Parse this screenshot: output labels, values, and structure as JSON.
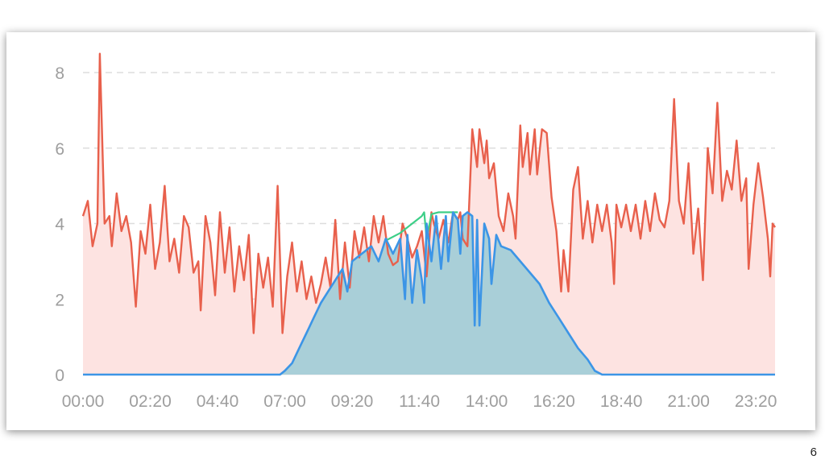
{
  "page_number": "6",
  "colors": {
    "consumption_line": "#e8604c",
    "consumption_fill": "#fde3e1",
    "solar_line": "#3c95e6",
    "solar_fill": "#a9cfd8",
    "estimate_line": "#3dcf88",
    "grid": "#dddddd",
    "tick_text": "#9e9e9e"
  },
  "chart_data": {
    "type": "area",
    "title": "",
    "xlabel": "",
    "ylabel": "",
    "x_tick_labels": [
      "00:00",
      "02:20",
      "04:40",
      "07:00",
      "09:20",
      "11:40",
      "14:00",
      "16:20",
      "18:40",
      "21:00",
      "23:20"
    ],
    "y_ticks": [
      0,
      2,
      4,
      6,
      8
    ],
    "xlim": [
      "00:00",
      "24:00"
    ],
    "ylim": [
      0,
      8.6
    ],
    "grid": "horizontal dashed",
    "legend": "none",
    "series": [
      {
        "id": "consumption",
        "color": "#e8604c",
        "points": [
          [
            "00:00",
            4.2
          ],
          [
            "00:10",
            4.6
          ],
          [
            "00:20",
            3.4
          ],
          [
            "00:30",
            4.0
          ],
          [
            "00:35",
            8.5
          ],
          [
            "00:45",
            4.0
          ],
          [
            "00:55",
            4.2
          ],
          [
            "01:00",
            3.4
          ],
          [
            "01:10",
            4.8
          ],
          [
            "01:20",
            3.8
          ],
          [
            "01:30",
            4.2
          ],
          [
            "01:40",
            3.5
          ],
          [
            "01:50",
            1.8
          ],
          [
            "02:00",
            3.8
          ],
          [
            "02:10",
            3.2
          ],
          [
            "02:20",
            4.5
          ],
          [
            "02:30",
            2.8
          ],
          [
            "02:40",
            3.5
          ],
          [
            "02:50",
            5.0
          ],
          [
            "03:00",
            3.0
          ],
          [
            "03:10",
            3.6
          ],
          [
            "03:20",
            2.7
          ],
          [
            "03:30",
            4.2
          ],
          [
            "03:40",
            3.9
          ],
          [
            "03:50",
            2.7
          ],
          [
            "04:00",
            3.0
          ],
          [
            "04:05",
            1.7
          ],
          [
            "04:15",
            4.2
          ],
          [
            "04:25",
            3.5
          ],
          [
            "04:35",
            2.1
          ],
          [
            "04:45",
            4.3
          ],
          [
            "04:55",
            2.7
          ],
          [
            "05:05",
            3.9
          ],
          [
            "05:15",
            2.2
          ],
          [
            "05:25",
            3.4
          ],
          [
            "05:35",
            2.5
          ],
          [
            "05:45",
            3.7
          ],
          [
            "05:55",
            1.1
          ],
          [
            "06:05",
            3.2
          ],
          [
            "06:15",
            2.3
          ],
          [
            "06:25",
            3.1
          ],
          [
            "06:35",
            1.8
          ],
          [
            "06:45",
            5.0
          ],
          [
            "06:55",
            1.1
          ],
          [
            "07:05",
            2.6
          ],
          [
            "07:15",
            3.5
          ],
          [
            "07:25",
            2.2
          ],
          [
            "07:35",
            3.0
          ],
          [
            "07:45",
            2.0
          ],
          [
            "07:55",
            2.6
          ],
          [
            "08:05",
            1.9
          ],
          [
            "08:15",
            2.4
          ],
          [
            "08:25",
            3.1
          ],
          [
            "08:35",
            2.3
          ],
          [
            "08:45",
            4.1
          ],
          [
            "08:55",
            2.0
          ],
          [
            "09:05",
            3.5
          ],
          [
            "09:15",
            2.3
          ],
          [
            "09:25",
            3.8
          ],
          [
            "09:35",
            3.1
          ],
          [
            "09:45",
            3.9
          ],
          [
            "09:55",
            3.0
          ],
          [
            "10:05",
            4.2
          ],
          [
            "10:15",
            3.5
          ],
          [
            "10:25",
            4.2
          ],
          [
            "10:35",
            3.2
          ],
          [
            "10:45",
            2.9
          ],
          [
            "10:55",
            3.0
          ],
          [
            "11:05",
            4.0
          ],
          [
            "11:15",
            3.6
          ],
          [
            "11:25",
            3.1
          ],
          [
            "11:35",
            3.4
          ],
          [
            "11:45",
            3.8
          ],
          [
            "11:55",
            2.6
          ],
          [
            "12:05",
            4.3
          ],
          [
            "12:10",
            4.0
          ],
          [
            "12:20",
            3.6
          ],
          [
            "12:30",
            4.1
          ],
          [
            "12:40",
            3.5
          ],
          [
            "12:50",
            4.3
          ],
          [
            "13:00",
            4.1
          ],
          [
            "13:05",
            4.3
          ],
          [
            "13:10",
            3.6
          ],
          [
            "13:20",
            3.4
          ],
          [
            "13:30",
            6.5
          ],
          [
            "13:40",
            5.5
          ],
          [
            "13:45",
            6.5
          ],
          [
            "13:55",
            5.6
          ],
          [
            "14:00",
            6.2
          ],
          [
            "14:05",
            5.2
          ],
          [
            "14:15",
            5.6
          ],
          [
            "14:25",
            4.2
          ],
          [
            "14:35",
            3.8
          ],
          [
            "14:45",
            4.8
          ],
          [
            "14:55",
            4.2
          ],
          [
            "15:00",
            3.6
          ],
          [
            "15:10",
            6.6
          ],
          [
            "15:15",
            5.5
          ],
          [
            "15:25",
            6.4
          ],
          [
            "15:30",
            5.3
          ],
          [
            "15:40",
            6.5
          ],
          [
            "15:45",
            5.3
          ],
          [
            "15:55",
            6.5
          ],
          [
            "16:05",
            6.4
          ],
          [
            "16:15",
            4.7
          ],
          [
            "16:25",
            3.8
          ],
          [
            "16:35",
            2.2
          ],
          [
            "16:40",
            3.3
          ],
          [
            "16:50",
            2.2
          ],
          [
            "17:00",
            4.9
          ],
          [
            "17:10",
            5.5
          ],
          [
            "17:20",
            3.6
          ],
          [
            "17:30",
            4.6
          ],
          [
            "17:40",
            3.5
          ],
          [
            "17:50",
            4.5
          ],
          [
            "18:00",
            3.8
          ],
          [
            "18:10",
            4.5
          ],
          [
            "18:20",
            3.5
          ],
          [
            "18:25",
            2.4
          ],
          [
            "18:30",
            4.5
          ],
          [
            "18:40",
            3.9
          ],
          [
            "18:50",
            4.5
          ],
          [
            "19:00",
            3.8
          ],
          [
            "19:10",
            4.5
          ],
          [
            "19:20",
            3.6
          ],
          [
            "19:30",
            4.6
          ],
          [
            "19:40",
            3.8
          ],
          [
            "19:50",
            4.8
          ],
          [
            "20:00",
            4.1
          ],
          [
            "20:10",
            3.9
          ],
          [
            "20:20",
            4.6
          ],
          [
            "20:30",
            7.3
          ],
          [
            "20:40",
            4.6
          ],
          [
            "20:50",
            4.0
          ],
          [
            "21:00",
            5.6
          ],
          [
            "21:10",
            3.2
          ],
          [
            "21:20",
            4.4
          ],
          [
            "21:30",
            2.5
          ],
          [
            "21:40",
            6.0
          ],
          [
            "21:50",
            4.8
          ],
          [
            "22:00",
            7.2
          ],
          [
            "22:10",
            4.6
          ],
          [
            "22:20",
            5.4
          ],
          [
            "22:30",
            4.9
          ],
          [
            "22:40",
            6.2
          ],
          [
            "22:50",
            4.6
          ],
          [
            "23:00",
            5.2
          ],
          [
            "23:05",
            2.8
          ],
          [
            "23:15",
            4.5
          ],
          [
            "23:25",
            5.6
          ],
          [
            "23:35",
            4.7
          ],
          [
            "23:45",
            3.6
          ],
          [
            "23:50",
            2.6
          ],
          [
            "23:55",
            4.0
          ],
          [
            "24:00",
            3.9
          ]
        ]
      },
      {
        "id": "solar",
        "color": "#3c95e6",
        "points": [
          [
            "00:00",
            0
          ],
          [
            "06:50",
            0
          ],
          [
            "07:00",
            0.1
          ],
          [
            "07:15",
            0.3
          ],
          [
            "07:30",
            0.7
          ],
          [
            "07:45",
            1.1
          ],
          [
            "08:00",
            1.5
          ],
          [
            "08:15",
            1.9
          ],
          [
            "08:30",
            2.2
          ],
          [
            "08:45",
            2.5
          ],
          [
            "09:00",
            2.8
          ],
          [
            "09:10",
            2.2
          ],
          [
            "09:20",
            3.0
          ],
          [
            "09:40",
            3.2
          ],
          [
            "10:00",
            3.4
          ],
          [
            "10:15",
            3.0
          ],
          [
            "10:30",
            3.6
          ],
          [
            "10:45",
            3.2
          ],
          [
            "11:00",
            3.6
          ],
          [
            "11:10",
            2.0
          ],
          [
            "11:15",
            3.7
          ],
          [
            "11:25",
            1.9
          ],
          [
            "11:35",
            3.3
          ],
          [
            "11:45",
            2.5
          ],
          [
            "11:50",
            1.9
          ],
          [
            "11:55",
            4.0
          ],
          [
            "12:05",
            3.0
          ],
          [
            "12:15",
            4.2
          ],
          [
            "12:25",
            2.8
          ],
          [
            "12:35",
            4.2
          ],
          [
            "12:40",
            3.0
          ],
          [
            "12:50",
            4.3
          ],
          [
            "13:00",
            4.1
          ],
          [
            "13:05",
            3.2
          ],
          [
            "13:10",
            4.2
          ],
          [
            "13:20",
            4.3
          ],
          [
            "13:30",
            4.2
          ],
          [
            "13:35",
            1.3
          ],
          [
            "13:40",
            4.1
          ],
          [
            "13:45",
            1.3
          ],
          [
            "13:55",
            4.0
          ],
          [
            "14:05",
            3.6
          ],
          [
            "14:10",
            2.4
          ],
          [
            "14:20",
            3.7
          ],
          [
            "14:30",
            3.4
          ],
          [
            "14:50",
            3.3
          ],
          [
            "15:10",
            3.0
          ],
          [
            "15:30",
            2.7
          ],
          [
            "15:50",
            2.4
          ],
          [
            "16:10",
            1.9
          ],
          [
            "16:30",
            1.5
          ],
          [
            "16:50",
            1.1
          ],
          [
            "17:10",
            0.7
          ],
          [
            "17:30",
            0.4
          ],
          [
            "17:45",
            0.1
          ],
          [
            "18:00",
            0
          ],
          [
            "24:00",
            0
          ]
        ]
      },
      {
        "id": "solar_estimate",
        "color": "#3dcf88",
        "points": [
          [
            "10:30",
            3.55
          ],
          [
            "11:00",
            3.75
          ],
          [
            "11:30",
            4.05
          ],
          [
            "11:45",
            4.2
          ],
          [
            "11:50",
            4.3
          ],
          [
            "11:55",
            3.6
          ],
          [
            "12:05",
            4.25
          ],
          [
            "12:20",
            4.3
          ],
          [
            "12:40",
            4.3
          ],
          [
            "13:00",
            4.3
          ]
        ]
      }
    ]
  }
}
